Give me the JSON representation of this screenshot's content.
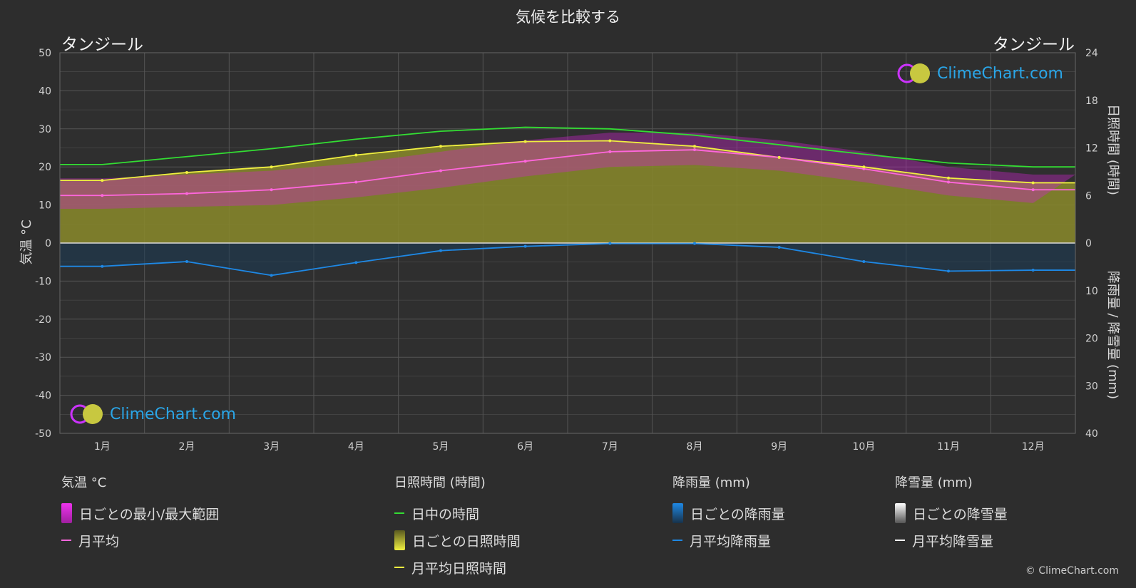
{
  "page": {
    "title": "気候を比較する",
    "location_left": "タンジール",
    "location_right": "タンジール",
    "copyright": "© ClimeChart.com",
    "logo_text": "ClimeChart.com"
  },
  "axes": {
    "y_left_label": "気温 °C",
    "y_right_top_label": "日照時間 (時間)",
    "y_right_bottom_label": "降雨量 / 降雪量 (mm)",
    "y_left_ticks": [
      "50",
      "40",
      "30",
      "20",
      "10",
      "0",
      "-10",
      "-20",
      "-30",
      "-40",
      "-50"
    ],
    "y_right_top_ticks": [
      "24",
      "18",
      "12",
      "6",
      "0"
    ],
    "y_right_bottom_ticks": [
      "10",
      "20",
      "30",
      "40"
    ]
  },
  "legend": {
    "temperature": {
      "title": "気温 °C",
      "range_label": "日ごとの最小/最大範囲",
      "avg_label": "月平均"
    },
    "sunshine": {
      "title": "日照時間 (時間)",
      "daylight_label": "日中の時間",
      "daily_label": "日ごとの日照時間",
      "avg_label": "月平均日照時間"
    },
    "rain": {
      "title": "降雨量 (mm)",
      "daily_label": "日ごとの降雨量",
      "avg_label": "月平均降雨量"
    },
    "snow": {
      "title": "降雪量 (mm)",
      "daily_label": "日ごとの降雪量",
      "avg_label": "月平均降雪量"
    }
  },
  "colors": {
    "background": "#2d2d2d",
    "grid": "#555555",
    "daylight": "#33dd33",
    "sunshine_avg": "#f0f040",
    "sunshine_fill": "#8a8a2a",
    "temp_avg": "#ff66dd",
    "temp_range": "#cc22cc",
    "rain": "#1e88e5",
    "snow": "#ffffff"
  },
  "chart_data": {
    "type": "line",
    "categories": [
      "1月",
      "2月",
      "3月",
      "4月",
      "5月",
      "6月",
      "7月",
      "8月",
      "9月",
      "10月",
      "11月",
      "12月"
    ],
    "ylim_temperature": [
      -50,
      50
    ],
    "ylim_sunshine_hours": [
      0,
      24
    ],
    "ylim_precip_mm": [
      0,
      40
    ],
    "grid": true,
    "series": [
      {
        "name": "日中の時間",
        "axis": "sunshine",
        "values": [
          9.9,
          10.9,
          11.9,
          13.1,
          14.1,
          14.6,
          14.4,
          13.6,
          12.4,
          11.2,
          10.1,
          9.6
        ]
      },
      {
        "name": "月平均日照時間",
        "axis": "sunshine",
        "values": [
          7.9,
          8.9,
          9.6,
          11.1,
          12.2,
          12.8,
          12.9,
          12.2,
          10.8,
          9.6,
          8.2,
          7.6
        ]
      },
      {
        "name": "月平均",
        "axis": "temperature",
        "values": [
          12.5,
          13.0,
          14.0,
          16.0,
          19.0,
          21.5,
          24.0,
          24.5,
          22.5,
          19.5,
          16.0,
          14.0
        ]
      },
      {
        "name": "日ごとの最小/最大範囲 (最大)",
        "axis": "temperature",
        "values": [
          17,
          18,
          19,
          21,
          24,
          27,
          29,
          29,
          27,
          24,
          20,
          18
        ]
      },
      {
        "name": "日ごとの最小/最大範囲 (最小)",
        "axis": "temperature",
        "values": [
          9,
          9.5,
          10,
          12,
          14.5,
          17.5,
          20,
          20.5,
          19,
          16,
          12.5,
          10.5
        ]
      },
      {
        "name": "月平均降雨量",
        "axis": "precip",
        "values": [
          4.9,
          3.9,
          6.8,
          4.1,
          1.6,
          0.7,
          0.1,
          0.1,
          0.9,
          3.9,
          5.9,
          5.7
        ]
      },
      {
        "name": "月平均降雪量",
        "axis": "precip",
        "values": [
          0,
          0,
          0,
          0,
          0,
          0,
          0,
          0,
          0,
          0,
          0,
          0
        ]
      }
    ]
  }
}
